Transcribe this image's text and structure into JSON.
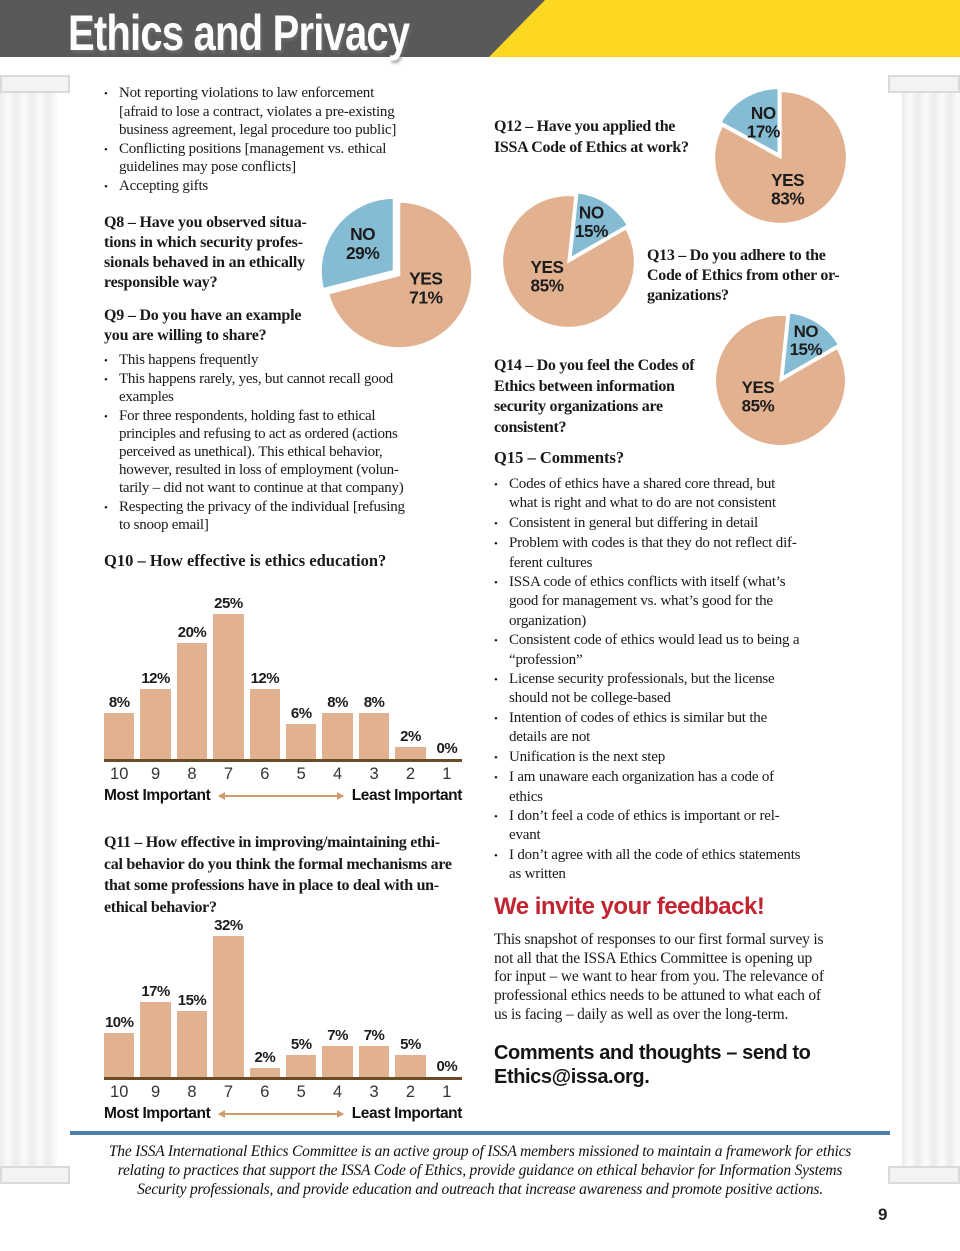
{
  "header": {
    "title": "Ethics and Privacy",
    "bar_color": "#59585a",
    "accent_color": "#fdd823"
  },
  "colors": {
    "tan": "#e2b18f",
    "blue": "#85bcd4",
    "red_heading": "#c22531",
    "footer_rule": "#4d7fae",
    "axis_brown": "#6b4a26",
    "arrow_tan": "#cf9c6d"
  },
  "left": {
    "top_bullets": [
      "Not reporting violations to law enforcement\n[afraid to lose a contract, violates a pre-existing\nbusiness agreement, legal procedure too public]",
      "Conflicting positions [management vs. ethical\nguidelines may pose conflicts]",
      "Accepting gifts"
    ],
    "q8_heading": "Q8 – Have you observed situa-\ntions in which security profes-\nsionals behaved in an ethically\nresponsible way?",
    "q9_heading": "Q9 – Do you have an example\nyou are willing to share?",
    "q9_bullets": [
      "This happens frequently",
      "This happens rarely, yes, but cannot recall good\nexamples",
      "For three respondents, holding fast to ethical\nprinciples and refusing to act as ordered (actions\nperceived as unethical). This ethical behavior,\nhowever, resulted in loss of employment (volun-\ntarily – did not want to continue at that company)",
      "Respecting the privacy of the individual  [refusing\nto snoop email]"
    ],
    "q10_heading": "Q10 – How effective is ethics education?",
    "q11_heading": "Q11 – How effective in improving/maintaining ethi-\ncal behavior do you think the formal mechanisms are\nthat some professions have in place to deal with un-\nethical behavior?"
  },
  "right": {
    "q12_heading": "Q12 – Have you applied the\nISSA Code of Ethics at work?",
    "q13_heading": "Q13 – Do you adhere to the\nCode of Ethics from other or-\nganizations?",
    "q14_heading": "Q14 – Do you feel the Codes of\nEthics between information\nsecurity organizations are\nconsistent?",
    "q15_heading": "Q15 – Comments?",
    "q15_bullets": [
      "Codes of ethics have a shared core thread, but\nwhat is right and what to do are not consistent",
      "Consistent in general but differing in detail",
      "Problem with codes is that they do not reflect dif-\nferent cultures",
      "ISSA code of ethics conflicts with itself (what’s\ngood for management vs. what’s good for the\norganization)",
      "Consistent code of ethics would lead us to being a\n“profession”",
      "License security professionals, but the license\nshould not be college-based",
      "Intention of codes of ethics is similar but the\ndetails are not",
      "Unification is the next step",
      "I am unaware each organization has a code of\nethics",
      "I don’t feel a code of ethics is important or rel-\nevant",
      "I don’t agree with all the code of ethics statements\nas written"
    ],
    "feedback_heading": "We invite your feedback!",
    "feedback_paragraph": "This snapshot of responses to our first formal survey is\nnot all that the ISSA Ethics Committee is opening up\nfor input – we want to hear from you.  The relevance of\nprofessional ethics needs to be attuned to what each of\nus is facing – daily as well as over the long-term.",
    "comments_cta": "Comments and thoughts – send to\nEthics@issa.org."
  },
  "footer": {
    "text": "The ISSA International Ethics Committee is an active group of ISSA members missioned to maintain a framework for ethics\nrelating to practices that support the ISSA Code of Ethics, provide guidance on ethical behavior for Information Systems\nSecurity professionals, and provide education and outreach that increase awareness and promote positive actions.",
    "page_number": "9"
  },
  "chart_data": [
    {
      "id": "q8",
      "type": "pie",
      "title": "Q8 – Have you observed situations in which security professionals behaved in an ethically responsible way?",
      "rotate": 0,
      "slices": [
        {
          "name": "YES",
          "value": 71,
          "color": "#e2b18f",
          "label_lines": [
            "YES",
            "71%"
          ],
          "label_pos": [
            67,
            56
          ]
        },
        {
          "name": "NO",
          "value": 29,
          "color": "#85bcd4",
          "label_lines": [
            "NO",
            "29%"
          ],
          "label_pos": [
            27,
            28
          ],
          "explode": 4
        }
      ]
    },
    {
      "id": "q12",
      "type": "pie",
      "title": "Q12 – Have you applied the ISSA Code of Ethics at work?",
      "rotate": 0,
      "slices": [
        {
          "name": "YES",
          "value": 83,
          "color": "#e2b18f",
          "label_lines": [
            "YES",
            "83%"
          ],
          "label_pos": [
            55,
            70
          ]
        },
        {
          "name": "NO",
          "value": 17,
          "color": "#85bcd4",
          "label_lines": [
            "NO",
            "17%"
          ],
          "label_pos": [
            38,
            23
          ],
          "explode": 2.5
        }
      ]
    },
    {
      "id": "q13",
      "type": "pie",
      "title": "Q13 – Do you adhere to the Code of Ethics from other organizations?",
      "rotate": 6,
      "slices": [
        {
          "name": "NO",
          "value": 15,
          "color": "#85bcd4",
          "label_lines": [
            "NO",
            "15%"
          ],
          "label_pos": [
            66,
            20
          ],
          "explode": 2.5
        },
        {
          "name": "YES",
          "value": 85,
          "color": "#e2b18f",
          "label_lines": [
            "YES",
            "85%"
          ],
          "label_pos": [
            35,
            58
          ]
        }
      ]
    },
    {
      "id": "q14",
      "type": "pie",
      "title": "Q14 – Do you feel the Codes of Ethics between information security organizations are consistent?",
      "rotate": 6,
      "slices": [
        {
          "name": "NO",
          "value": 15,
          "color": "#85bcd4",
          "label_lines": [
            "NO",
            "15%"
          ],
          "label_pos": [
            68,
            19
          ],
          "explode": 2.5
        },
        {
          "name": "YES",
          "value": 85,
          "color": "#e2b18f",
          "label_lines": [
            "YES",
            "85%"
          ],
          "label_pos": [
            34,
            59
          ]
        }
      ]
    },
    {
      "id": "q10",
      "type": "bar",
      "title": "Q10 – How effective is ethics education?",
      "categories": [
        "10",
        "9",
        "8",
        "7",
        "6",
        "5",
        "4",
        "3",
        "2",
        "1"
      ],
      "values": [
        8,
        12,
        20,
        25,
        12,
        6,
        8,
        8,
        2,
        0
      ],
      "labels": [
        "8%",
        "12%",
        "20%",
        "25%",
        "12%",
        "6%",
        "8%",
        "8%",
        "2%",
        "0%"
      ],
      "ylim": [
        0,
        25
      ],
      "bar_color": "#e2b18f",
      "axis_color": "#6b4a26",
      "x_left_label": "Most Important",
      "x_right_label": "Least Important"
    },
    {
      "id": "q11",
      "type": "bar",
      "title": "Q11 – How effective in improving/maintaining ethical behavior do you think the formal mechanisms are that some professions have in place to deal with unethical behavior?",
      "categories": [
        "10",
        "9",
        "8",
        "7",
        "6",
        "5",
        "4",
        "3",
        "2",
        "1"
      ],
      "values": [
        10,
        17,
        15,
        32,
        2,
        5,
        7,
        7,
        5,
        0
      ],
      "labels": [
        "10%",
        "17%",
        "15%",
        "32%",
        "2%",
        "5%",
        "7%",
        "7%",
        "5%",
        "0%"
      ],
      "ylim": [
        0,
        32
      ],
      "bar_color": "#e2b18f",
      "axis_color": "#6b4a26",
      "x_left_label": "Most Important",
      "x_right_label": "Least Important"
    }
  ]
}
